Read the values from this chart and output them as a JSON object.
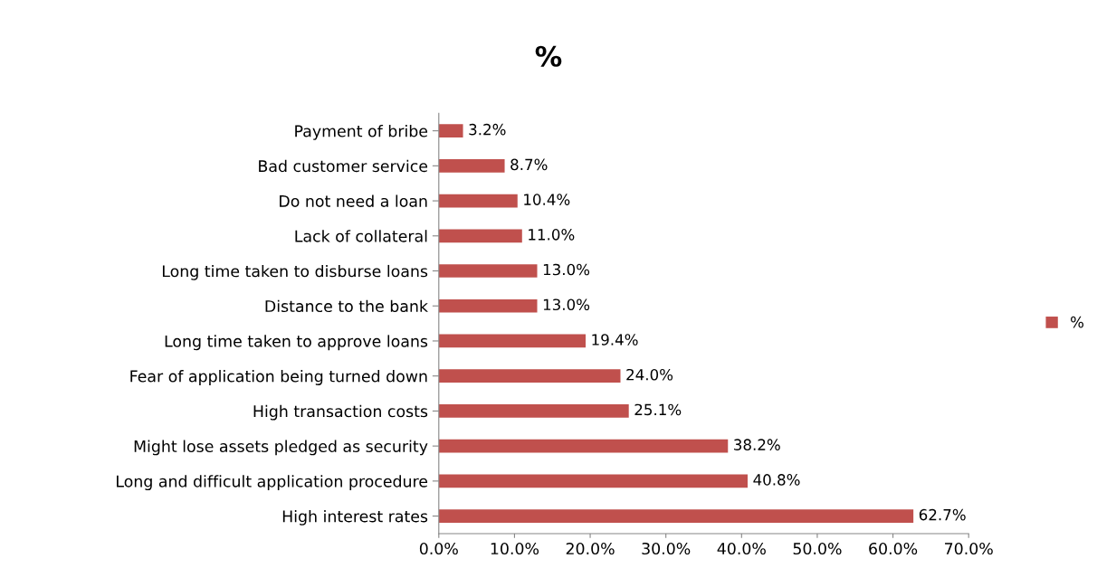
{
  "chart_data": {
    "type": "bar",
    "orientation": "horizontal",
    "title": "%",
    "categories": [
      "Payment of bribe",
      "Bad customer service",
      "Do not need a loan",
      "Lack of collateral",
      "Long time taken to disburse loans",
      "Distance to the bank",
      "Long time taken to approve loans",
      "Fear of application being turned down",
      "High transaction costs",
      "Might lose assets pledged as security",
      "Long and difficult application procedure",
      "High interest rates"
    ],
    "series": [
      {
        "name": "%",
        "color": "#c0504d",
        "values": [
          3.2,
          8.7,
          10.4,
          11.0,
          13.0,
          13.0,
          19.4,
          24.0,
          25.1,
          38.2,
          40.8,
          62.7
        ],
        "value_labels": [
          "3.2%",
          "8.7%",
          "10.4%",
          "11.0%",
          "13.0%",
          "13.0%",
          "19.4%",
          "24.0%",
          "25.1%",
          "38.2%",
          "40.8%",
          "62.7%"
        ]
      }
    ],
    "xlim": [
      0,
      70
    ],
    "xticks": [
      {
        "value": 0,
        "label": "0.0%"
      },
      {
        "value": 10,
        "label": "10.0%"
      },
      {
        "value": 20,
        "label": "20.0%"
      },
      {
        "value": 30,
        "label": "30.0%"
      },
      {
        "value": 40,
        "label": "40.0%"
      },
      {
        "value": 50,
        "label": "50.0%"
      },
      {
        "value": 60,
        "label": "60.0%"
      },
      {
        "value": 70,
        "label": "70.0%"
      }
    ],
    "grid": false,
    "legend": "right"
  }
}
